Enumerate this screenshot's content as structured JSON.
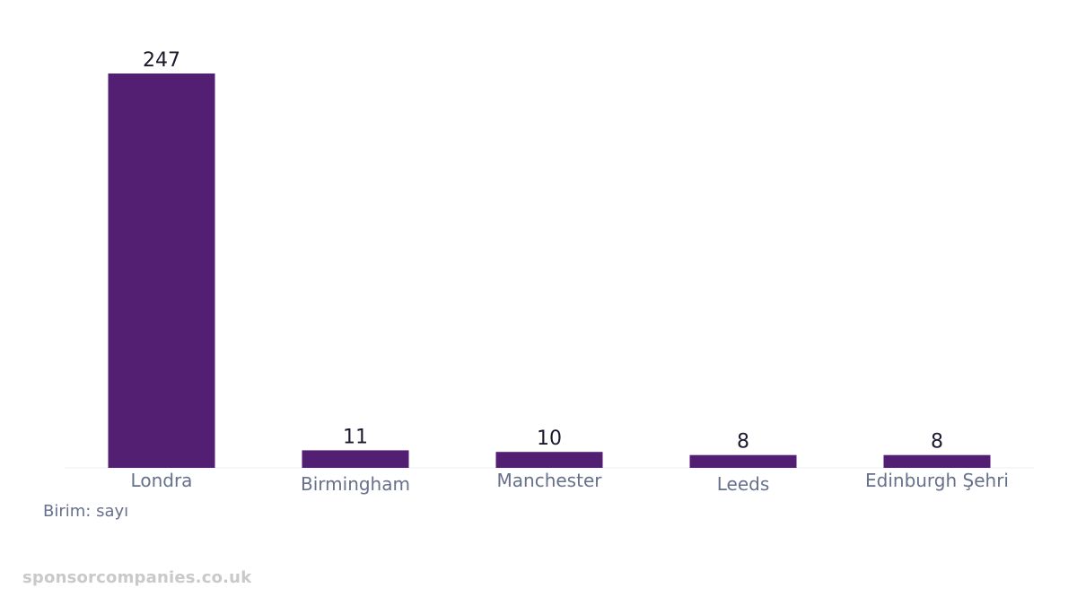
{
  "chart_data": {
    "type": "bar",
    "title": "",
    "xlabel": "",
    "ylabel": "",
    "categories": [
      "Londra",
      "Birmingham",
      "Manchester",
      "Leeds",
      "Edinburgh Şehri"
    ],
    "values": [
      247,
      11,
      10,
      8,
      8
    ],
    "ylim": [
      0,
      247
    ],
    "grid": false,
    "legend": "none",
    "bar_color": "#521f73",
    "unit_note": "Birim: sayı"
  },
  "watermark": "sponsorcompanies.co.uk"
}
